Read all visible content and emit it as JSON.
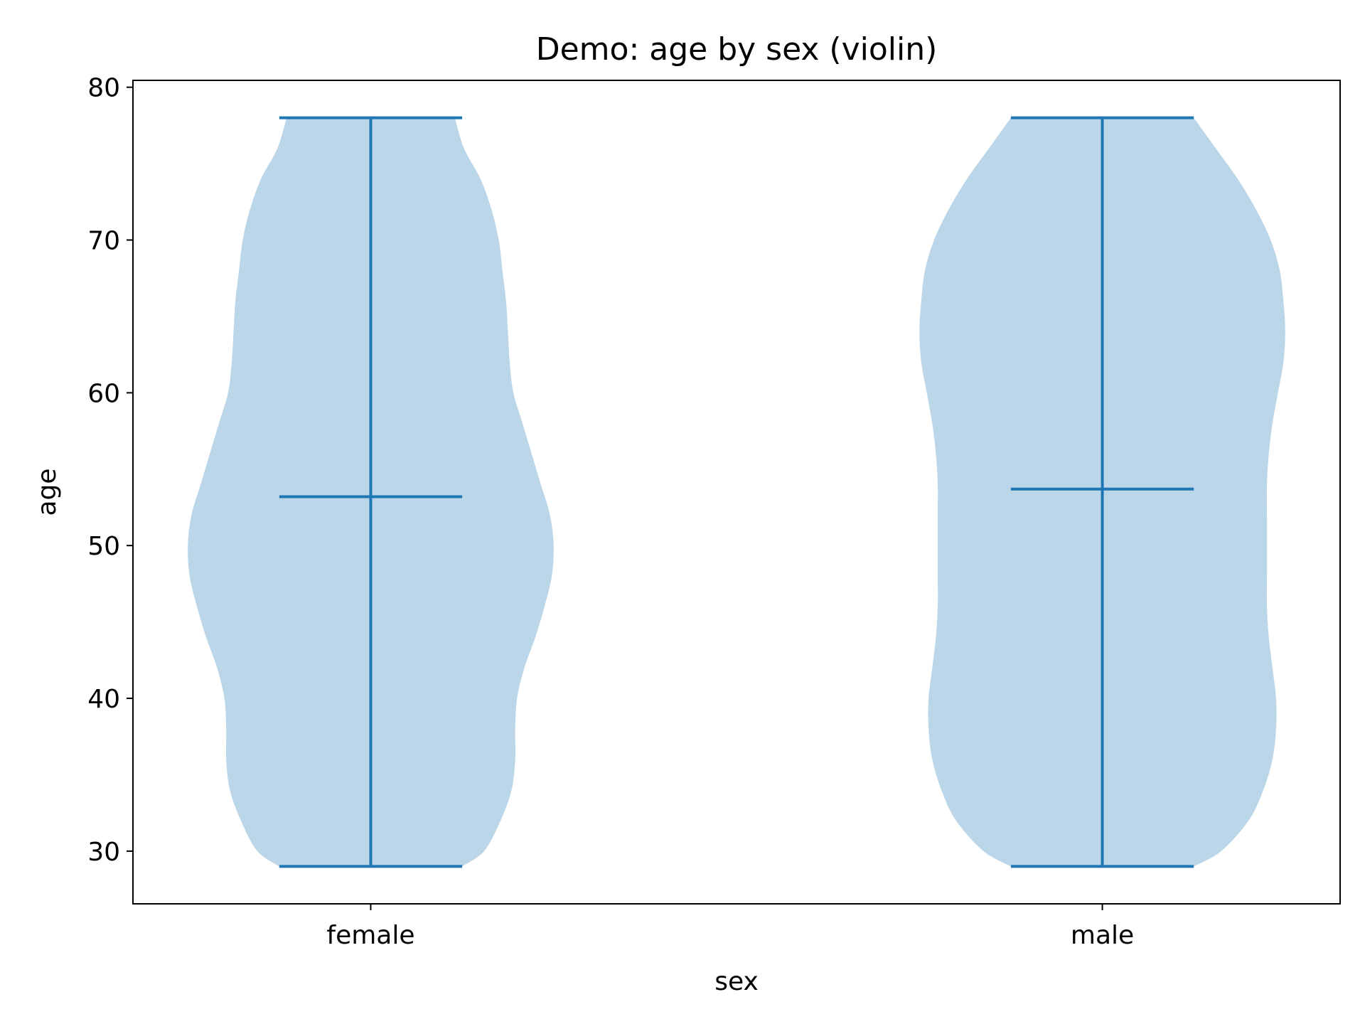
{
  "chart_data": {
    "type": "violin",
    "title": "Demo: age by sex (violin)",
    "xlabel": "sex",
    "ylabel": "age",
    "categories": [
      "female",
      "male"
    ],
    "ylim": [
      26.55,
      80.45
    ],
    "yticks": [
      30,
      40,
      50,
      60,
      70,
      80
    ],
    "grid": false,
    "series": [
      {
        "category": "female",
        "min": 29,
        "max": 78,
        "mean": 53.2,
        "density_profile": [
          [
            29,
            0.5
          ],
          [
            30,
            0.62
          ],
          [
            32,
            0.71
          ],
          [
            34,
            0.77
          ],
          [
            36,
            0.79
          ],
          [
            38,
            0.79
          ],
          [
            40,
            0.8
          ],
          [
            42,
            0.84
          ],
          [
            44,
            0.9
          ],
          [
            46,
            0.95
          ],
          [
            48,
            0.99
          ],
          [
            50,
            1.0
          ],
          [
            52,
            0.98
          ],
          [
            54,
            0.93
          ],
          [
            56,
            0.88
          ],
          [
            58,
            0.83
          ],
          [
            60,
            0.78
          ],
          [
            62,
            0.76
          ],
          [
            64,
            0.75
          ],
          [
            66,
            0.74
          ],
          [
            68,
            0.72
          ],
          [
            70,
            0.7
          ],
          [
            72,
            0.66
          ],
          [
            74,
            0.6
          ],
          [
            76,
            0.51
          ],
          [
            78,
            0.46
          ]
        ]
      },
      {
        "category": "male",
        "min": 29,
        "max": 78,
        "mean": 53.7,
        "density_profile": [
          [
            29,
            0.5
          ],
          [
            30,
            0.65
          ],
          [
            32,
            0.8
          ],
          [
            34,
            0.88
          ],
          [
            36,
            0.93
          ],
          [
            38,
            0.95
          ],
          [
            40,
            0.95
          ],
          [
            42,
            0.93
          ],
          [
            44,
            0.91
          ],
          [
            46,
            0.9
          ],
          [
            48,
            0.9
          ],
          [
            50,
            0.9
          ],
          [
            52,
            0.9
          ],
          [
            54,
            0.9
          ],
          [
            56,
            0.91
          ],
          [
            58,
            0.93
          ],
          [
            60,
            0.96
          ],
          [
            62,
            0.99
          ],
          [
            64,
            1.0
          ],
          [
            66,
            0.99
          ],
          [
            68,
            0.97
          ],
          [
            70,
            0.92
          ],
          [
            72,
            0.84
          ],
          [
            74,
            0.74
          ],
          [
            76,
            0.62
          ],
          [
            78,
            0.5
          ]
        ]
      }
    ],
    "colors": {
      "body_fill": "#1f77b4",
      "body_opacity": 0.3,
      "line": "#1f77b4",
      "axis": "#000000"
    }
  }
}
